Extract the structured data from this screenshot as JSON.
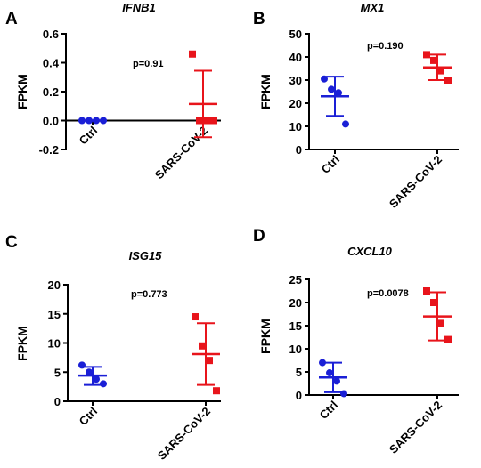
{
  "chart_data": [
    {
      "panel": "A",
      "type": "scatter",
      "title": "IFNB1",
      "ylabel": "FPKM",
      "ylim": [
        -0.2,
        0.6
      ],
      "yticks": [
        "-0.2",
        "0.0",
        "0.2",
        "0.4",
        "0.6"
      ],
      "ytick_values": [
        -0.2,
        0.0,
        0.2,
        0.4,
        0.6
      ],
      "categories": [
        "Ctrl",
        "SARS-CoV-2"
      ],
      "pvalue": "p=0.91",
      "colors": [
        "#1a1fd6",
        "#e8141b"
      ],
      "markers": [
        "circle",
        "square"
      ],
      "series": [
        {
          "points": [
            0.0,
            0.0,
            0.0,
            0.0
          ],
          "mean": 0.0,
          "sd_low": 0.0,
          "sd_high": 0.0
        },
        {
          "points": [
            0.46,
            0.0,
            0.0,
            0.0
          ],
          "mean": 0.115,
          "sd_low": -0.115,
          "sd_high": 0.345
        }
      ]
    },
    {
      "panel": "B",
      "type": "scatter",
      "title": "MX1",
      "ylabel": "FPKM",
      "ylim": [
        0,
        50
      ],
      "yticks": [
        "0",
        "10",
        "20",
        "30",
        "40",
        "50"
      ],
      "ytick_values": [
        0,
        10,
        20,
        30,
        40,
        50
      ],
      "categories": [
        "Ctrl",
        "SARS-CoV-2"
      ],
      "pvalue": "p=0.190",
      "colors": [
        "#1a1fd6",
        "#e8141b"
      ],
      "markers": [
        "circle",
        "square"
      ],
      "series": [
        {
          "points": [
            30.5,
            26.0,
            24.5,
            11.0
          ],
          "mean": 23.0,
          "sd_low": 14.5,
          "sd_high": 31.5
        },
        {
          "points": [
            41.0,
            38.5,
            34.0,
            30.0
          ],
          "mean": 35.5,
          "sd_low": 30.0,
          "sd_high": 41.0
        }
      ]
    },
    {
      "panel": "C",
      "type": "scatter",
      "title": "ISG15",
      "ylabel": "FPKM",
      "ylim": [
        0,
        20
      ],
      "yticks": [
        "0",
        "5",
        "10",
        "15",
        "20"
      ],
      "ytick_values": [
        0,
        5,
        10,
        15,
        20
      ],
      "categories": [
        "Ctrl",
        "SARS-CoV-2"
      ],
      "pvalue": "p=0.773",
      "colors": [
        "#1a1fd6",
        "#e8141b"
      ],
      "markers": [
        "circle",
        "square"
      ],
      "series": [
        {
          "points": [
            6.2,
            5.0,
            3.8,
            3.0
          ],
          "mean": 4.4,
          "sd_low": 2.8,
          "sd_high": 5.9
        },
        {
          "points": [
            14.5,
            9.5,
            7.0,
            1.8
          ],
          "mean": 8.1,
          "sd_low": 2.8,
          "sd_high": 13.4
        }
      ]
    },
    {
      "panel": "D",
      "type": "scatter",
      "title": "CXCL10",
      "ylabel": "FPKM",
      "ylim": [
        0,
        25
      ],
      "yticks": [
        "0",
        "5",
        "10",
        "15",
        "20",
        "25"
      ],
      "ytick_values": [
        0,
        5,
        10,
        15,
        20,
        25
      ],
      "categories": [
        "Ctrl",
        "SARS-CoV-2"
      ],
      "pvalue": "p=0.0078",
      "colors": [
        "#1a1fd6",
        "#e8141b"
      ],
      "markers": [
        "circle",
        "square"
      ],
      "series": [
        {
          "points": [
            7.0,
            4.8,
            3.0,
            0.3
          ],
          "mean": 3.8,
          "sd_low": 0.6,
          "sd_high": 7.0
        },
        {
          "points": [
            22.5,
            20.0,
            15.5,
            12.0
          ],
          "mean": 17.0,
          "sd_low": 11.8,
          "sd_high": 22.2
        }
      ]
    }
  ]
}
